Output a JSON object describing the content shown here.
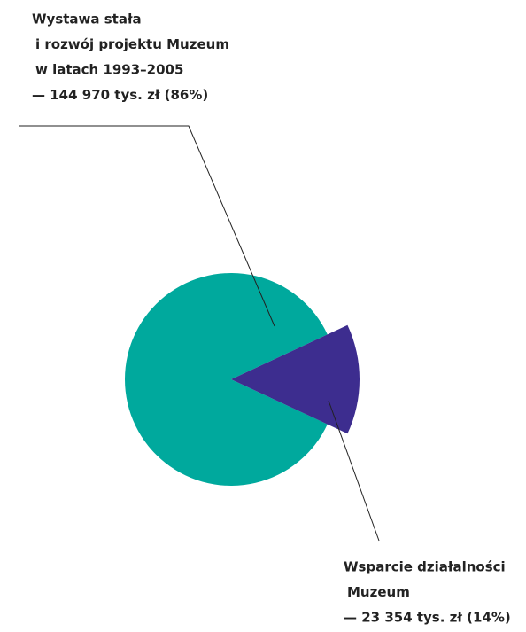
{
  "chart_data": {
    "type": "pie",
    "categories": [
      [
        "Wystawa stała",
        "i rozwój projektu Muzeum",
        "w latach 1993–2005"
      ],
      [
        "Wsparcie działalności",
        "Muzeum"
      ]
    ],
    "values": [
      144970,
      23354
    ],
    "value_labels": [
      "— 144 970 tys. zł (86%)",
      "— 23 354 tys. zł (14%)"
    ],
    "colors": [
      "#00a99d",
      "#3d2d8f"
    ]
  }
}
